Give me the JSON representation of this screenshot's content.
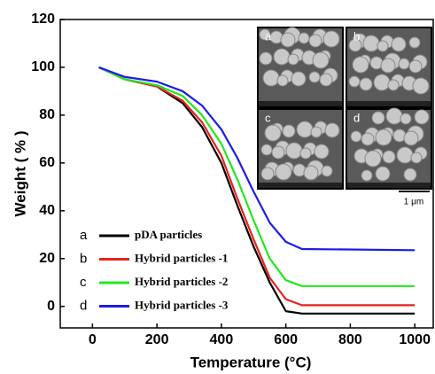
{
  "chart_data": {
    "type": "line",
    "x_label": "Temperature (°C)",
    "y_label": "Weight ( % )",
    "x": [
      20,
      100,
      200,
      280,
      340,
      400,
      450,
      500,
      550,
      600,
      650,
      1000
    ],
    "series": [
      {
        "tag": "a",
        "name": "pDA particles",
        "color": "#000000",
        "values": [
          100,
          95,
          92,
          85,
          75,
          60,
          42,
          25,
          10,
          -2,
          -3,
          -3
        ]
      },
      {
        "tag": "b",
        "name": "Hybrid particles -1",
        "color": "#e8211c",
        "values": [
          100,
          95,
          92,
          86,
          77,
          63,
          45,
          28,
          12,
          3,
          0.5,
          0.5
        ]
      },
      {
        "tag": "c",
        "name": "Hybrid particles -2",
        "color": "#22e81c",
        "values": [
          100,
          95,
          92.5,
          88,
          80,
          68,
          53,
          36,
          20,
          11,
          8.5,
          8.5
        ]
      },
      {
        "tag": "d",
        "name": "Hybrid particles -3",
        "color": "#1c1ce8",
        "values": [
          100,
          96,
          94,
          90,
          84,
          74,
          62,
          48,
          35,
          27,
          24,
          23.5
        ]
      }
    ],
    "xlim": [
      -100,
      1060
    ],
    "ylim": [
      -9,
      120
    ],
    "xticks": [
      0,
      200,
      400,
      600,
      800,
      1000
    ],
    "yticks": [
      0,
      20,
      40,
      60,
      80,
      100,
      120
    ],
    "insets": [
      "a",
      "b",
      "c",
      "d"
    ],
    "scale_bar_label": "1 μm"
  }
}
